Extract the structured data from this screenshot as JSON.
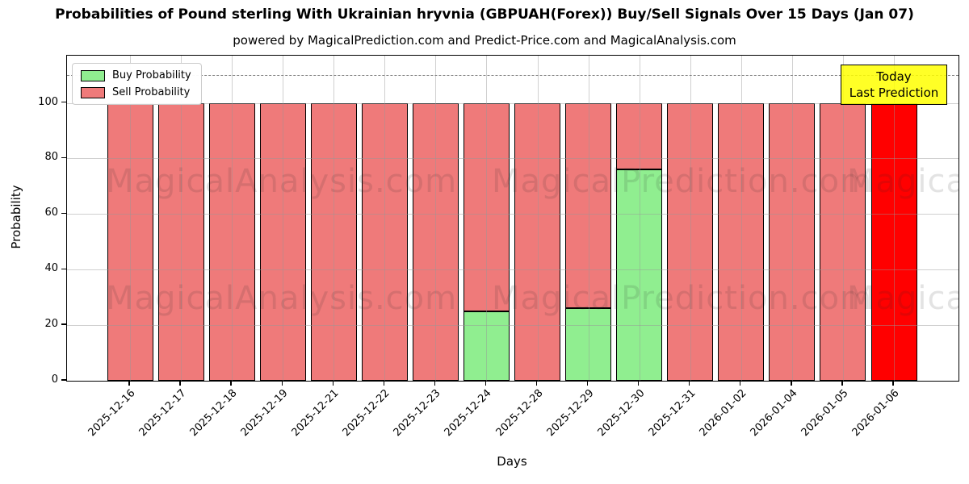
{
  "title": "Probabilities of Pound sterling With Ukrainian hryvnia (GBPUAH(Forex)) Buy/Sell Signals Over 15 Days (Jan 07)",
  "subtitle": "powered by MagicalPrediction.com and Predict-Price.com and MagicalAnalysis.com",
  "annotation": {
    "line1": "Today",
    "line2": "Last Prediction",
    "bg_color": "#ffff00",
    "border_color": "#000000"
  },
  "legend": {
    "items": [
      {
        "label": "Buy Probability",
        "color": "#90ee90"
      },
      {
        "label": "Sell Probability",
        "color": "#ef7a7a"
      }
    ]
  },
  "watermarks": {
    "texts": [
      "MagicalAnalysis.com",
      "MagicalPrediction.com"
    ]
  },
  "chart_data": {
    "type": "bar",
    "stacked": true,
    "title": "Probabilities of Pound sterling With Ukrainian hryvnia (GBPUAH(Forex)) Buy/Sell Signals Over 15 Days (Jan 07)",
    "xlabel": "Days",
    "ylabel": "Probability",
    "categories": [
      "2025-12-16",
      "2025-12-17",
      "2025-12-18",
      "2025-12-19",
      "2025-12-21",
      "2025-12-22",
      "2025-12-23",
      "2025-12-24",
      "2025-12-28",
      "2025-12-29",
      "2025-12-30",
      "2025-12-31",
      "2026-01-02",
      "2026-01-04",
      "2026-01-05",
      "2026-01-06"
    ],
    "series": [
      {
        "name": "Buy Probability",
        "color": "#90ee90",
        "values": [
          0,
          0,
          0,
          0,
          0,
          0,
          0,
          25,
          0,
          26,
          76,
          0,
          0,
          0,
          0,
          0
        ]
      },
      {
        "name": "Sell Probability",
        "color": "#ef7a7a",
        "values": [
          100,
          100,
          100,
          100,
          100,
          100,
          100,
          75,
          100,
          74,
          24,
          100,
          100,
          100,
          100,
          100
        ]
      }
    ],
    "today_index": 15,
    "today_color": "#ff0000",
    "ylim": [
      0,
      117
    ],
    "yticks": [
      0,
      20,
      40,
      60,
      80,
      100
    ],
    "dashed_line_y": 110,
    "grid": true,
    "legend_position": "upper left"
  }
}
